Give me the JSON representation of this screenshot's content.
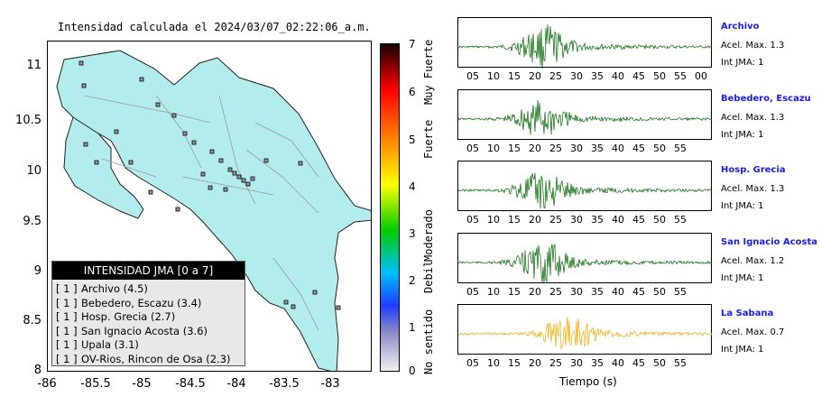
{
  "map": {
    "title": "Intensidad calculada el 2024/03/07_02:22:06_a.m.",
    "y_ticks": [
      "11",
      "10.5",
      "10",
      "9.5",
      "9",
      "8.5",
      "8"
    ],
    "x_ticks": [
      "-86",
      "-85.5",
      "-85",
      "-84.5",
      "-84",
      "-83.5",
      "-83"
    ],
    "colors": {
      "land": "#b3ecec",
      "sea": "#ffffff",
      "station_fill": "#9b98a8"
    }
  },
  "legend": {
    "header": "INTENSIDAD JMA [0 a 7]",
    "rows": [
      {
        "level": "[ 1 ]",
        "name": "Archivo (4.5)"
      },
      {
        "level": "[ 1 ]",
        "name": "Bebedero, Escazu (3.4)"
      },
      {
        "level": "[ 1 ]",
        "name": "Hosp. Grecia (2.7)"
      },
      {
        "level": "[ 1 ]",
        "name": "San Ignacio Acosta (3.6)"
      },
      {
        "level": "[ 1 ]",
        "name": "Upala (3.1)"
      },
      {
        "level": "[ 1 ]",
        "name": "OV-Rios, Rincon de Osa (2.3)"
      }
    ]
  },
  "colorbar": {
    "labels": [
      "7",
      "6",
      "5",
      "4",
      "3",
      "2",
      "1",
      "0"
    ],
    "categories": [
      "Muy Fuerte",
      "Fuerte",
      "Moderado",
      "Debil",
      "No sentido"
    ]
  },
  "panels": [
    {
      "name": "Archivo",
      "acel": "Acel. Max. 1.3",
      "int": "Int JMA: 1",
      "ticks": [
        "05",
        "10",
        "15",
        "20",
        "25",
        "30",
        "35",
        "40",
        "45",
        "50",
        "55",
        "00"
      ],
      "color": "#006400"
    },
    {
      "name": "Bebedero, Escazu",
      "acel": "Acel. Max. 1.3",
      "int": "Int JMA: 1",
      "ticks": [
        "05",
        "10",
        "15",
        "20",
        "25",
        "30",
        "35",
        "40",
        "45",
        "50",
        "55"
      ],
      "color": "#006400"
    },
    {
      "name": "Hosp. Grecia",
      "acel": "Acel. Max. 1.3",
      "int": "Int JMA: 1",
      "ticks": [
        "05",
        "10",
        "15",
        "20",
        "25",
        "30",
        "35",
        "40",
        "45",
        "50",
        "55"
      ],
      "color": "#006400"
    },
    {
      "name": "San Ignacio Acosta",
      "acel": "Acel. Max. 1.2",
      "int": "Int JMA: 1",
      "ticks": [
        "05",
        "10",
        "15",
        "20",
        "25",
        "30",
        "35",
        "40",
        "45",
        "50",
        "55"
      ],
      "color": "#006400"
    },
    {
      "name": "La Sabana",
      "acel": "Acel. Max. 0.7",
      "int": "Int JMA: 1",
      "ticks": [
        "05",
        "10",
        "15",
        "20",
        "25",
        "30",
        "35",
        "40",
        "45",
        "50",
        "55"
      ],
      "color": "#f0a800"
    }
  ],
  "x_axis_title": "Tiempo (s)"
}
